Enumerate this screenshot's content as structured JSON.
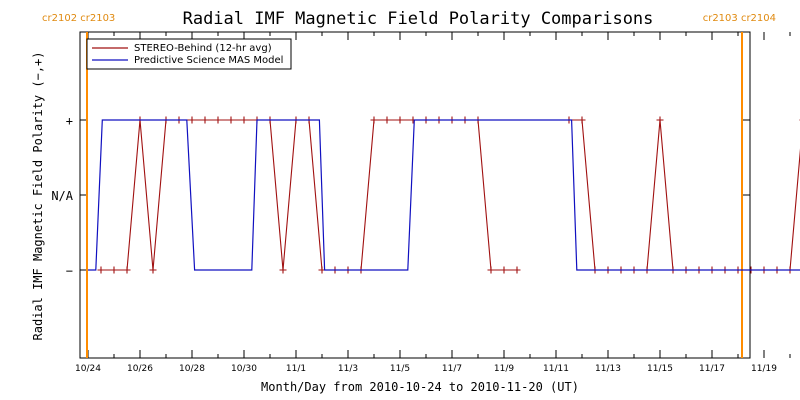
{
  "chart_data": {
    "type": "line",
    "title": "Radial IMF Magnetic Field Polarity Comparisons",
    "xlabel": "Month/Day from 2010-10-24 to 2010-11-20 (UT)",
    "ylabel": "Radial IMF Magnetic Field Polarity (−,+)",
    "x_unit": "days since 2010-10-24 00:00 UT",
    "xlim": [
      0,
      28
    ],
    "ylim": [
      -2,
      2
    ],
    "x_tick_labels": [
      "10/24",
      "10/26",
      "10/28",
      "10/30",
      "11/1",
      "11/3",
      "11/5",
      "11/7",
      "11/9",
      "11/11",
      "11/13",
      "11/15",
      "11/17",
      "11/19"
    ],
    "y_tick_labels": [
      "−",
      "N/A",
      "+"
    ],
    "y_tick_values": [
      -1,
      0,
      1
    ],
    "carrington_markers": [
      {
        "label": "cr2102 cr2103",
        "x": 0.0
      },
      {
        "label": "cr2103 cr2104",
        "x": 27.5
      }
    ],
    "legend": {
      "placement": "top-left",
      "entries": [
        "STEREO-Behind (12-hr avg)",
        "Predictive Science MAS Model"
      ]
    },
    "series": [
      {
        "name": "STEREO-Behind (12-hr avg)",
        "color": "#a01010",
        "marker": "plus",
        "points": [
          [
            0.5,
            -1
          ],
          [
            1.0,
            -1
          ],
          [
            1.5,
            -1
          ],
          [
            2.0,
            1
          ],
          [
            2.5,
            -1
          ],
          [
            3.0,
            1
          ],
          [
            3.5,
            1
          ],
          [
            4.0,
            1
          ],
          [
            4.5,
            1
          ],
          [
            5.0,
            1
          ],
          [
            5.5,
            1
          ],
          [
            6.0,
            1
          ],
          [
            6.5,
            1
          ],
          [
            7.0,
            1
          ],
          [
            7.5,
            -1
          ],
          [
            8.0,
            1
          ],
          [
            8.5,
            1
          ],
          [
            9.0,
            -1
          ],
          [
            9.5,
            -1
          ],
          [
            10.0,
            -1
          ],
          [
            10.5,
            -1
          ],
          [
            11.0,
            1
          ],
          [
            11.5,
            1
          ],
          [
            12.0,
            1
          ],
          [
            12.5,
            1
          ],
          [
            13.0,
            1
          ],
          [
            13.5,
            1
          ],
          [
            14.0,
            1
          ],
          [
            14.5,
            1
          ],
          [
            15.0,
            1
          ],
          [
            15.5,
            -1
          ],
          [
            16.0,
            -1
          ],
          [
            16.5,
            -1
          ],
          [
            18.5,
            1
          ],
          [
            19.0,
            1
          ],
          [
            19.5,
            -1
          ],
          [
            20.0,
            -1
          ],
          [
            20.5,
            -1
          ],
          [
            21.0,
            -1
          ],
          [
            21.5,
            -1
          ],
          [
            22.0,
            1
          ],
          [
            22.5,
            -1
          ],
          [
            23.0,
            -1
          ],
          [
            23.5,
            -1
          ],
          [
            24.0,
            -1
          ],
          [
            24.5,
            -1
          ],
          [
            25.0,
            -1
          ],
          [
            25.5,
            -1
          ],
          [
            26.0,
            -1
          ],
          [
            26.5,
            -1
          ],
          [
            27.0,
            -1
          ],
          [
            27.5,
            1
          ]
        ]
      },
      {
        "name": "Predictive Science MAS Model",
        "color": "#1010c0",
        "points": [
          [
            0.0,
            -1
          ],
          [
            0.3,
            -1
          ],
          [
            0.55,
            1
          ],
          [
            3.8,
            1
          ],
          [
            4.1,
            -1
          ],
          [
            6.3,
            -1
          ],
          [
            6.5,
            1
          ],
          [
            8.9,
            1
          ],
          [
            9.1,
            -1
          ],
          [
            12.3,
            -1
          ],
          [
            12.55,
            1
          ],
          [
            15.5,
            1
          ],
          [
            15.7,
            1
          ],
          [
            18.6,
            1
          ],
          [
            18.8,
            -1
          ],
          [
            27.8,
            -1
          ]
        ]
      }
    ]
  }
}
